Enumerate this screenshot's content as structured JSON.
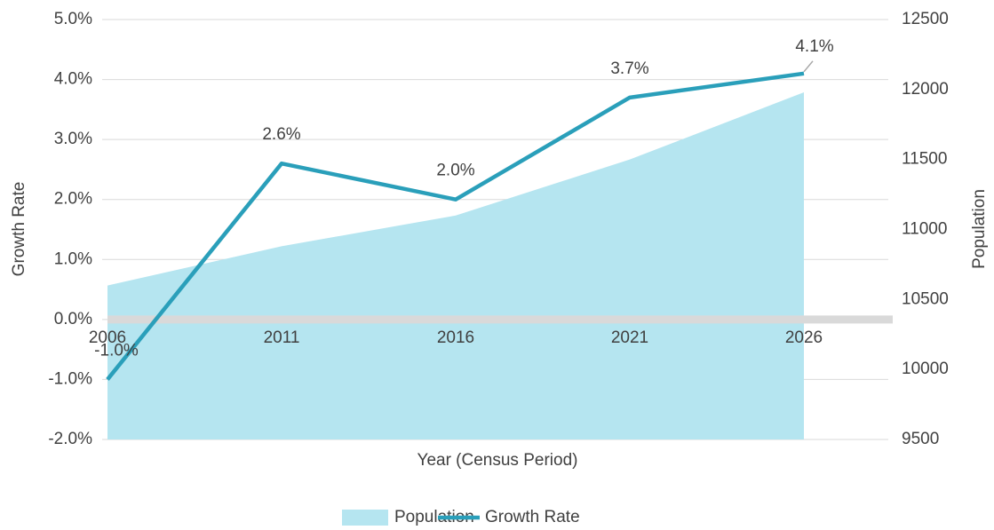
{
  "chart_data": {
    "type": "combo",
    "x_label": "Year (Census Period)",
    "y_label": "Growth Rate",
    "y2_label": "Population",
    "categories": [
      "2006",
      "2011",
      "2016",
      "2021",
      "2026"
    ],
    "series": [
      {
        "name": "Population",
        "type": "area",
        "axis": "y2",
        "color": "#b5e5f0",
        "values": [
          10600,
          10880,
          11100,
          11500,
          11980
        ]
      },
      {
        "name": "Growth Rate",
        "type": "line",
        "axis": "y",
        "color": "#2a9fba",
        "values": [
          -1.0,
          2.6,
          2.0,
          3.7,
          4.1
        ],
        "value_labels": [
          "-1.0%",
          "2.6%",
          "2.0%",
          "3.7%",
          "4.1%"
        ]
      }
    ],
    "ylim": [
      -2,
      5
    ],
    "yticks": [
      {
        "value": -2,
        "label": "-2.0%"
      },
      {
        "value": -1,
        "label": "-1.0%"
      },
      {
        "value": 0,
        "label": "0.0%"
      },
      {
        "value": 1,
        "label": "1.0%"
      },
      {
        "value": 2,
        "label": "2.0%"
      },
      {
        "value": 3,
        "label": "3.0%"
      },
      {
        "value": 4,
        "label": "4.0%"
      },
      {
        "value": 5,
        "label": "5.0%"
      }
    ],
    "y2lim": [
      9500,
      12500
    ],
    "y2ticks": [
      9500,
      10000,
      10500,
      11000,
      11500,
      12000,
      12500
    ],
    "grid": true,
    "legend": "bottom"
  }
}
